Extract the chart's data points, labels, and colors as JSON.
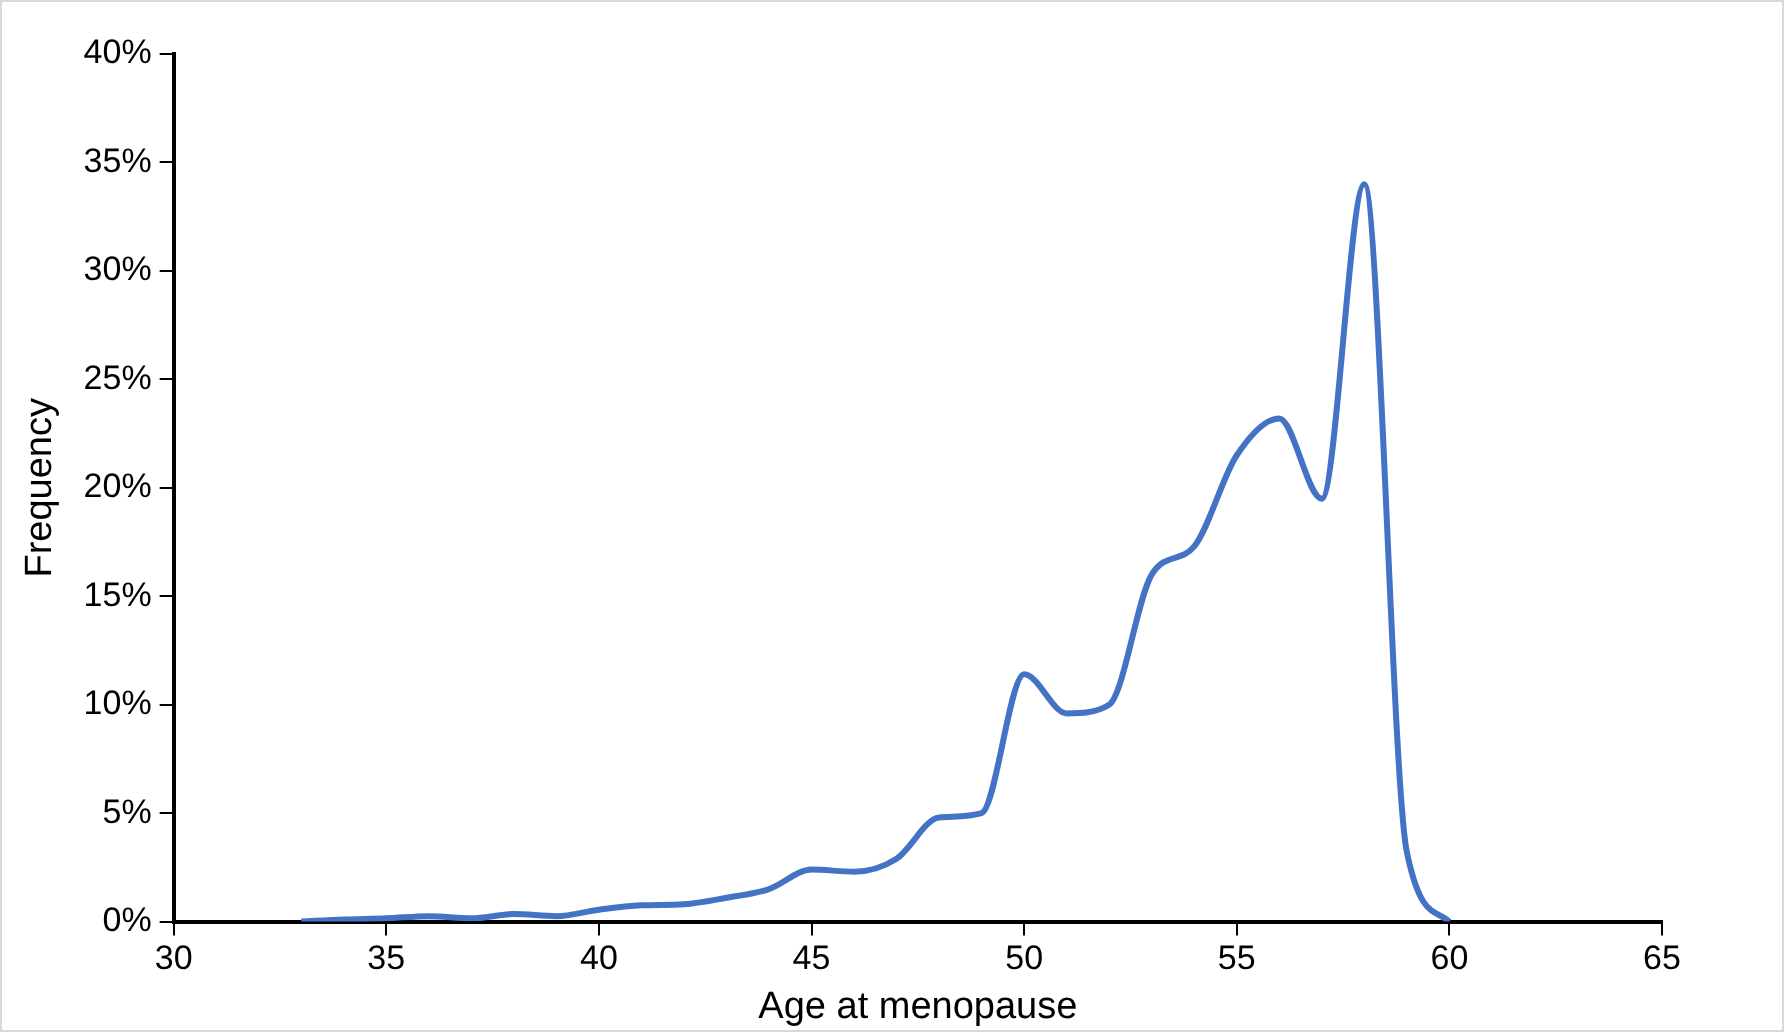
{
  "chart_data": {
    "type": "line",
    "xlabel": "Age at menopause",
    "ylabel": "Frequency",
    "x": [
      33,
      34,
      35,
      36,
      37,
      38,
      39,
      40,
      41,
      42,
      43,
      44,
      45,
      46,
      47,
      48,
      49,
      50,
      51,
      52,
      53,
      54,
      55,
      56,
      57,
      58,
      59,
      60
    ],
    "series": [
      {
        "color": "#4472c4",
        "values": [
          0,
          0.1,
          0.15,
          0.25,
          0.15,
          0.35,
          0.25,
          0.55,
          0.75,
          0.8,
          1.1,
          1.5,
          2.4,
          2.3,
          2.9,
          4.8,
          5.0,
          11.4,
          9.6,
          10.0,
          16.0,
          17.3,
          21.5,
          23.2,
          19.5,
          34.0,
          3.2,
          0
        ]
      }
    ],
    "xlim": [
      30,
      65
    ],
    "xticks": [
      30,
      35,
      40,
      45,
      50,
      55,
      60,
      65
    ],
    "ylim": [
      0,
      40
    ],
    "yticks": [
      {
        "value": 0,
        "label": "0%"
      },
      {
        "value": 5,
        "label": "5%"
      },
      {
        "value": 10,
        "label": "10%"
      },
      {
        "value": 15,
        "label": "15%"
      },
      {
        "value": 20,
        "label": "20%"
      },
      {
        "value": 25,
        "label": "25%"
      },
      {
        "value": 30,
        "label": "30%"
      },
      {
        "value": 35,
        "label": "35%"
      },
      {
        "value": 40,
        "label": "40%"
      }
    ],
    "grid": false,
    "legend": false,
    "marker": "none",
    "line_style": "solid"
  }
}
